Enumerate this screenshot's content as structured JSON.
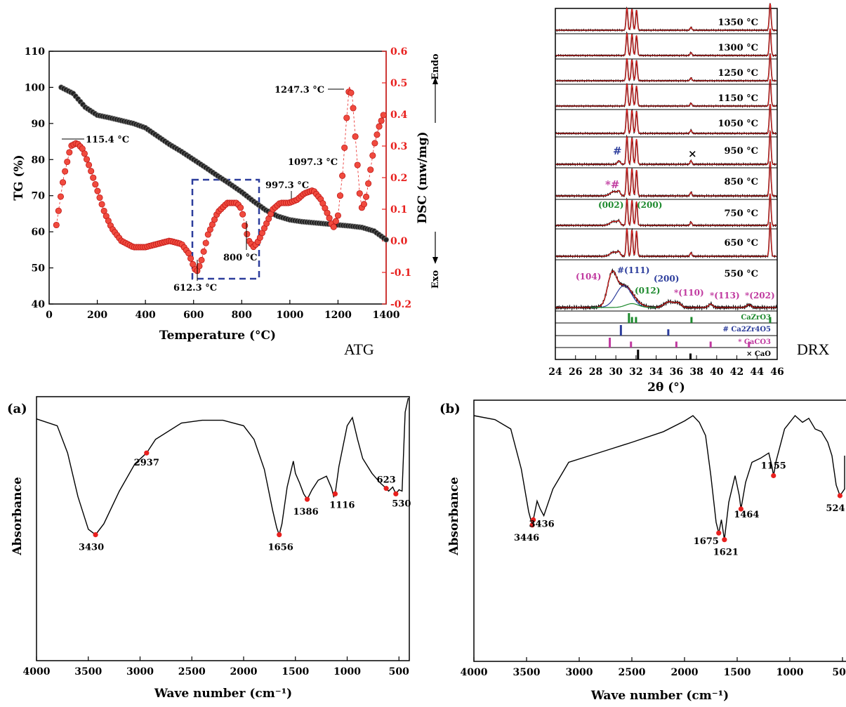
{
  "side_labels": {
    "atg": "ATG",
    "drx": "DRX"
  },
  "chart_data": [
    {
      "id": "tg-dsc",
      "type": "line",
      "xlabel": "Temperature (°C)",
      "ylabel_left": "TG (%)",
      "ylabel_right": "DSC (mw/mg)",
      "right_top_label": "Endo",
      "right_bottom_label": "Exo",
      "xlim": [
        0,
        1400
      ],
      "ylim_left": [
        40,
        110
      ],
      "ylim_right": [
        -0.2,
        0.6
      ],
      "x_ticks": [
        0,
        200,
        400,
        600,
        800,
        1000,
        1200,
        1400
      ],
      "y_ticks_left": [
        40,
        50,
        60,
        70,
        80,
        90,
        100,
        110
      ],
      "y_ticks_right": [
        "-0.2",
        "-0.1",
        "0.0",
        "0.1",
        "0.2",
        "0.3",
        "0.4",
        "0.5",
        "0.6"
      ],
      "series": [
        {
          "color": "#000000",
          "axis": "left",
          "x": [
            50,
            100,
            150,
            200,
            250,
            300,
            350,
            400,
            450,
            500,
            550,
            600,
            650,
            700,
            750,
            800,
            850,
            900,
            950,
            1000,
            1050,
            1100,
            1150,
            1200,
            1250,
            1300,
            1350,
            1400
          ],
          "y": [
            100,
            98.3,
            94.5,
            92.3,
            91.6,
            90.8,
            90.0,
            88.8,
            86.5,
            84.2,
            82.2,
            80.0,
            77.8,
            75.5,
            73.3,
            71.0,
            68.4,
            66.0,
            64.3,
            63.3,
            62.8,
            62.5,
            62.2,
            61.9,
            61.6,
            61.2,
            60.2,
            57.8
          ]
        },
        {
          "color": "#e8201e",
          "axis": "right",
          "x": [
            30,
            60,
            90,
            115,
            140,
            170,
            200,
            230,
            260,
            300,
            350,
            400,
            450,
            500,
            550,
            580,
            600,
            612,
            630,
            660,
            700,
            740,
            780,
            800,
            815,
            830,
            850,
            870,
            900,
            930,
            960,
            997,
            1030,
            1060,
            1097,
            1130,
            1160,
            1180,
            1200,
            1220,
            1235,
            1247,
            1260,
            1275,
            1290,
            1300,
            1315,
            1330,
            1350,
            1370,
            1390
          ],
          "y": [
            0.05,
            0.2,
            0.3,
            0.31,
            0.29,
            0.23,
            0.16,
            0.09,
            0.04,
            0.0,
            -0.02,
            -0.02,
            -0.01,
            0.0,
            -0.01,
            -0.04,
            -0.08,
            -0.1,
            -0.07,
            0.02,
            0.09,
            0.12,
            0.12,
            0.1,
            0.04,
            0.0,
            -0.02,
            0.0,
            0.05,
            0.1,
            0.12,
            0.12,
            0.13,
            0.15,
            0.16,
            0.13,
            0.08,
            0.04,
            0.08,
            0.22,
            0.38,
            0.49,
            0.45,
            0.3,
            0.15,
            0.1,
            0.13,
            0.2,
            0.3,
            0.36,
            0.4
          ]
        }
      ],
      "annotations": [
        "115.4 °C",
        "612.3 °C",
        "800 °C",
        "997.3 °C",
        "1097.3 °C",
        "1247.3 °C"
      ]
    },
    {
      "id": "xrd",
      "type": "line",
      "xlabel": "2θ (°)",
      "xlim": [
        24,
        46
      ],
      "x_ticks": [
        24,
        26,
        28,
        30,
        32,
        34,
        36,
        38,
        40,
        42,
        44,
        46
      ],
      "temperatures": [
        "1350 °C",
        "1300 °C",
        "1250 °C",
        "1150 °C",
        "1050 °C",
        "950 °C",
        "850 °C",
        "750 °C",
        "650 °C",
        "550 °C"
      ],
      "peak_labels_top": [
        {
          "text": "#",
          "color": "#2c3d9c"
        },
        {
          "text": "*#",
          "color": "#c0399f"
        },
        {
          "text": "(002)",
          "color": "#1e8a2e"
        },
        {
          "text": "(200)",
          "color": "#1e8a2e"
        },
        {
          "text": "×",
          "color": "#000000"
        }
      ],
      "peak_labels_550": [
        {
          "text": "(104)",
          "color": "#c0399f"
        },
        {
          "text": "#(111)",
          "color": "#2c3d9c"
        },
        {
          "text": "(200)",
          "color": "#2c3d9c"
        },
        {
          "text": "(012)",
          "color": "#1e8a2e"
        },
        {
          "text": "*(110)",
          "color": "#c0399f"
        },
        {
          "text": "*(113)",
          "color": "#c0399f"
        },
        {
          "text": "*(202)",
          "color": "#c0399f"
        }
      ],
      "reference": [
        {
          "label": "CaZrO3",
          "color": "#1e8a2e",
          "peaks": [
            31.3,
            31.6,
            32.0,
            37.5,
            45.3
          ]
        },
        {
          "label": "# Ca2Zr4O5",
          "color": "#2c3d9c",
          "peaks": [
            30.5,
            35.2
          ]
        },
        {
          "label": "* CaCO3",
          "color": "#c0399f",
          "peaks": [
            29.4,
            31.5,
            36.0,
            39.4,
            43.2
          ]
        },
        {
          "label": "× CaO",
          "color": "#000000",
          "peaks": [
            32.2,
            37.4
          ]
        }
      ]
    },
    {
      "id": "ftir-a",
      "type": "line",
      "panel": "(a)",
      "xlabel": "Wave number (cm⁻¹)",
      "ylabel": "Absorbance",
      "xlim": [
        4000,
        400
      ],
      "x_ticks": [
        4000,
        3500,
        3000,
        2500,
        2000,
        1500,
        1000,
        500
      ],
      "peaks": [
        3430,
        2937,
        1656,
        1386,
        1116,
        623,
        530
      ],
      "series": [
        {
          "color": "#000000",
          "x": [
            4000,
            3800,
            3700,
            3600,
            3500,
            3430,
            3350,
            3200,
            3050,
            2937,
            2850,
            2600,
            2400,
            2200,
            2000,
            1900,
            1800,
            1720,
            1680,
            1656,
            1630,
            1580,
            1520,
            1500,
            1460,
            1420,
            1386,
            1340,
            1280,
            1200,
            1150,
            1130,
            1116,
            1080,
            1000,
            950,
            900,
            850,
            760,
            680,
            623,
            600,
            560,
            530,
            500,
            470,
            440,
            410
          ],
          "y": [
            0.05,
            0.1,
            0.3,
            0.62,
            0.86,
            0.9,
            0.82,
            0.58,
            0.38,
            0.3,
            0.2,
            0.08,
            0.06,
            0.06,
            0.1,
            0.2,
            0.42,
            0.72,
            0.85,
            0.9,
            0.82,
            0.55,
            0.36,
            0.45,
            0.52,
            0.6,
            0.64,
            0.57,
            0.5,
            0.47,
            0.56,
            0.62,
            0.6,
            0.4,
            0.1,
            0.04,
            0.2,
            0.34,
            0.45,
            0.52,
            0.56,
            0.58,
            0.55,
            0.6,
            0.57,
            0.58,
            0.0,
            -0.2
          ]
        }
      ]
    },
    {
      "id": "ftir-b",
      "type": "line",
      "panel": "(b)",
      "xlabel": "Wave number (cm⁻¹)",
      "ylabel": "Absorbance",
      "xlim": [
        4000,
        400
      ],
      "x_ticks": [
        4000,
        3500,
        3000,
        2500,
        2000,
        1500,
        1000,
        500
      ],
      "peaks": [
        3446,
        3436,
        1675,
        1621,
        1464,
        1155,
        524
      ],
      "series": [
        {
          "color": "#000000",
          "x": [
            4000,
            3800,
            3650,
            3550,
            3480,
            3446,
            3400,
            3370,
            3336,
            3250,
            3100,
            2900,
            2700,
            2500,
            2200,
            2000,
            1920,
            1860,
            1800,
            1750,
            1700,
            1675,
            1650,
            1621,
            1580,
            1520,
            1480,
            1464,
            1420,
            1360,
            1280,
            1200,
            1170,
            1155,
            1130,
            1050,
            950,
            880,
            820,
            760,
            700,
            640,
            600,
            560,
            524,
            480,
            440,
            410
          ],
          "y": [
            0.0,
            0.03,
            0.1,
            0.4,
            0.72,
            0.82,
            0.64,
            0.7,
            0.75,
            0.55,
            0.35,
            0.3,
            0.25,
            0.2,
            0.12,
            0.04,
            0.0,
            0.05,
            0.15,
            0.45,
            0.8,
            0.88,
            0.78,
            0.93,
            0.65,
            0.45,
            0.6,
            0.7,
            0.5,
            0.35,
            0.32,
            0.28,
            0.38,
            0.45,
            0.34,
            0.1,
            0.0,
            0.05,
            0.02,
            0.1,
            0.12,
            0.2,
            0.3,
            0.52,
            0.6,
            0.55,
            0.4,
            0.3
          ]
        }
      ]
    }
  ]
}
